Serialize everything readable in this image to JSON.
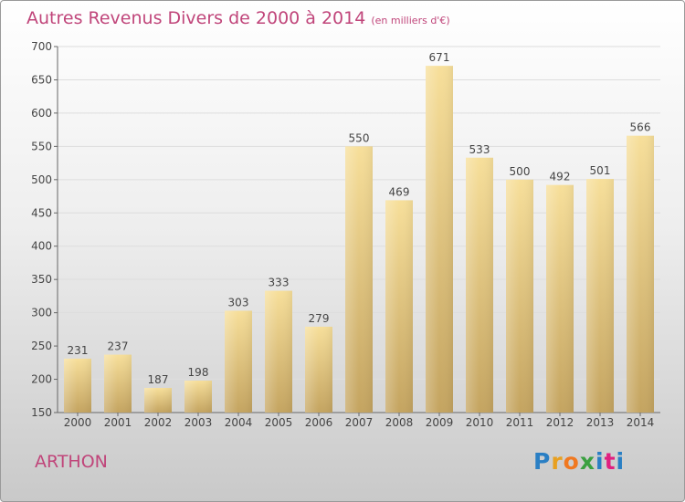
{
  "title": "Autres Revenus Divers de 2000 à 2014",
  "subtitle": "(en milliers d'€)",
  "commune": "ARTHON",
  "logo": {
    "letters": [
      "P",
      "r",
      "o",
      "x",
      "i",
      "t",
      "i"
    ],
    "colors": [
      "#2a7fc4",
      "#e8a020",
      "#f07820",
      "#3aa040",
      "#2a7fc4",
      "#e02080",
      "#2a7fc4"
    ]
  },
  "chart_data": {
    "type": "bar",
    "title": "Autres Revenus Divers de 2000 à 2014",
    "subtitle": "(en milliers d'€)",
    "categories": [
      "2000",
      "2001",
      "2002",
      "2003",
      "2004",
      "2005",
      "2006",
      "2007",
      "2008",
      "2009",
      "2010",
      "2011",
      "2012",
      "2013",
      "2014"
    ],
    "values": [
      231,
      237,
      187,
      198,
      303,
      333,
      279,
      550,
      469,
      671,
      533,
      500,
      492,
      501,
      566
    ],
    "ylim": [
      150,
      700
    ],
    "yticks": [
      150,
      200,
      250,
      300,
      350,
      400,
      450,
      500,
      550,
      600,
      650,
      700
    ],
    "grid": true,
    "colors": {
      "bar_top": "#f7df9a",
      "bar_bottom": "#c4a460",
      "grid": "#dddddd",
      "axis": "#666666"
    }
  }
}
